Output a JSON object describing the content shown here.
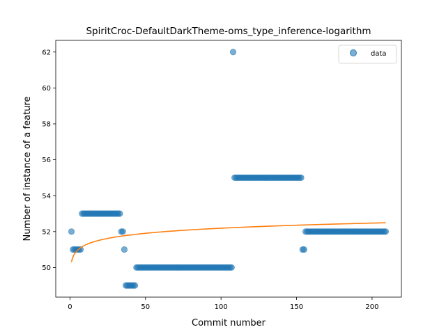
{
  "chart_data": {
    "type": "scatter",
    "title": "SpiritCroc-DefaultDarkTheme-oms_type_inference-logarithm",
    "xlabel": "Commit number",
    "ylabel": "Number of instance of a feature",
    "xlim": [
      -9.4,
      219.4
    ],
    "ylim": [
      48.35,
      62.65
    ],
    "xticks": [
      0,
      50,
      100,
      150,
      200
    ],
    "yticks": [
      50,
      52,
      54,
      56,
      58,
      60,
      62
    ],
    "grid": false,
    "legend": {
      "position": "top-right",
      "entries": [
        "data"
      ]
    },
    "colors": {
      "scatter": "#1f77b4",
      "fit": "#ff7f0e"
    },
    "series": [
      {
        "name": "data",
        "kind": "scatter",
        "segments": [
          {
            "x_start": 1,
            "x_end": 1,
            "y": 52
          },
          {
            "x_start": 2,
            "x_end": 7,
            "y": 51
          },
          {
            "x_start": 8,
            "x_end": 33,
            "y": 53
          },
          {
            "x_start": 34,
            "x_end": 35,
            "y": 52
          },
          {
            "x_start": 36,
            "x_end": 36,
            "y": 51
          },
          {
            "x_start": 37,
            "x_end": 43,
            "y": 49
          },
          {
            "x_start": 44,
            "x_end": 107,
            "y": 50
          },
          {
            "x_start": 108,
            "x_end": 108,
            "y": 62
          },
          {
            "x_start": 109,
            "x_end": 153,
            "y": 55
          },
          {
            "x_start": 154,
            "x_end": 155,
            "y": 51
          },
          {
            "x_start": 156,
            "x_end": 209,
            "y": 52
          }
        ]
      },
      {
        "name": "",
        "kind": "line",
        "model": "logarithmic",
        "a": 50.3,
        "b": 0.41,
        "x_range": [
          1,
          209
        ]
      }
    ]
  }
}
